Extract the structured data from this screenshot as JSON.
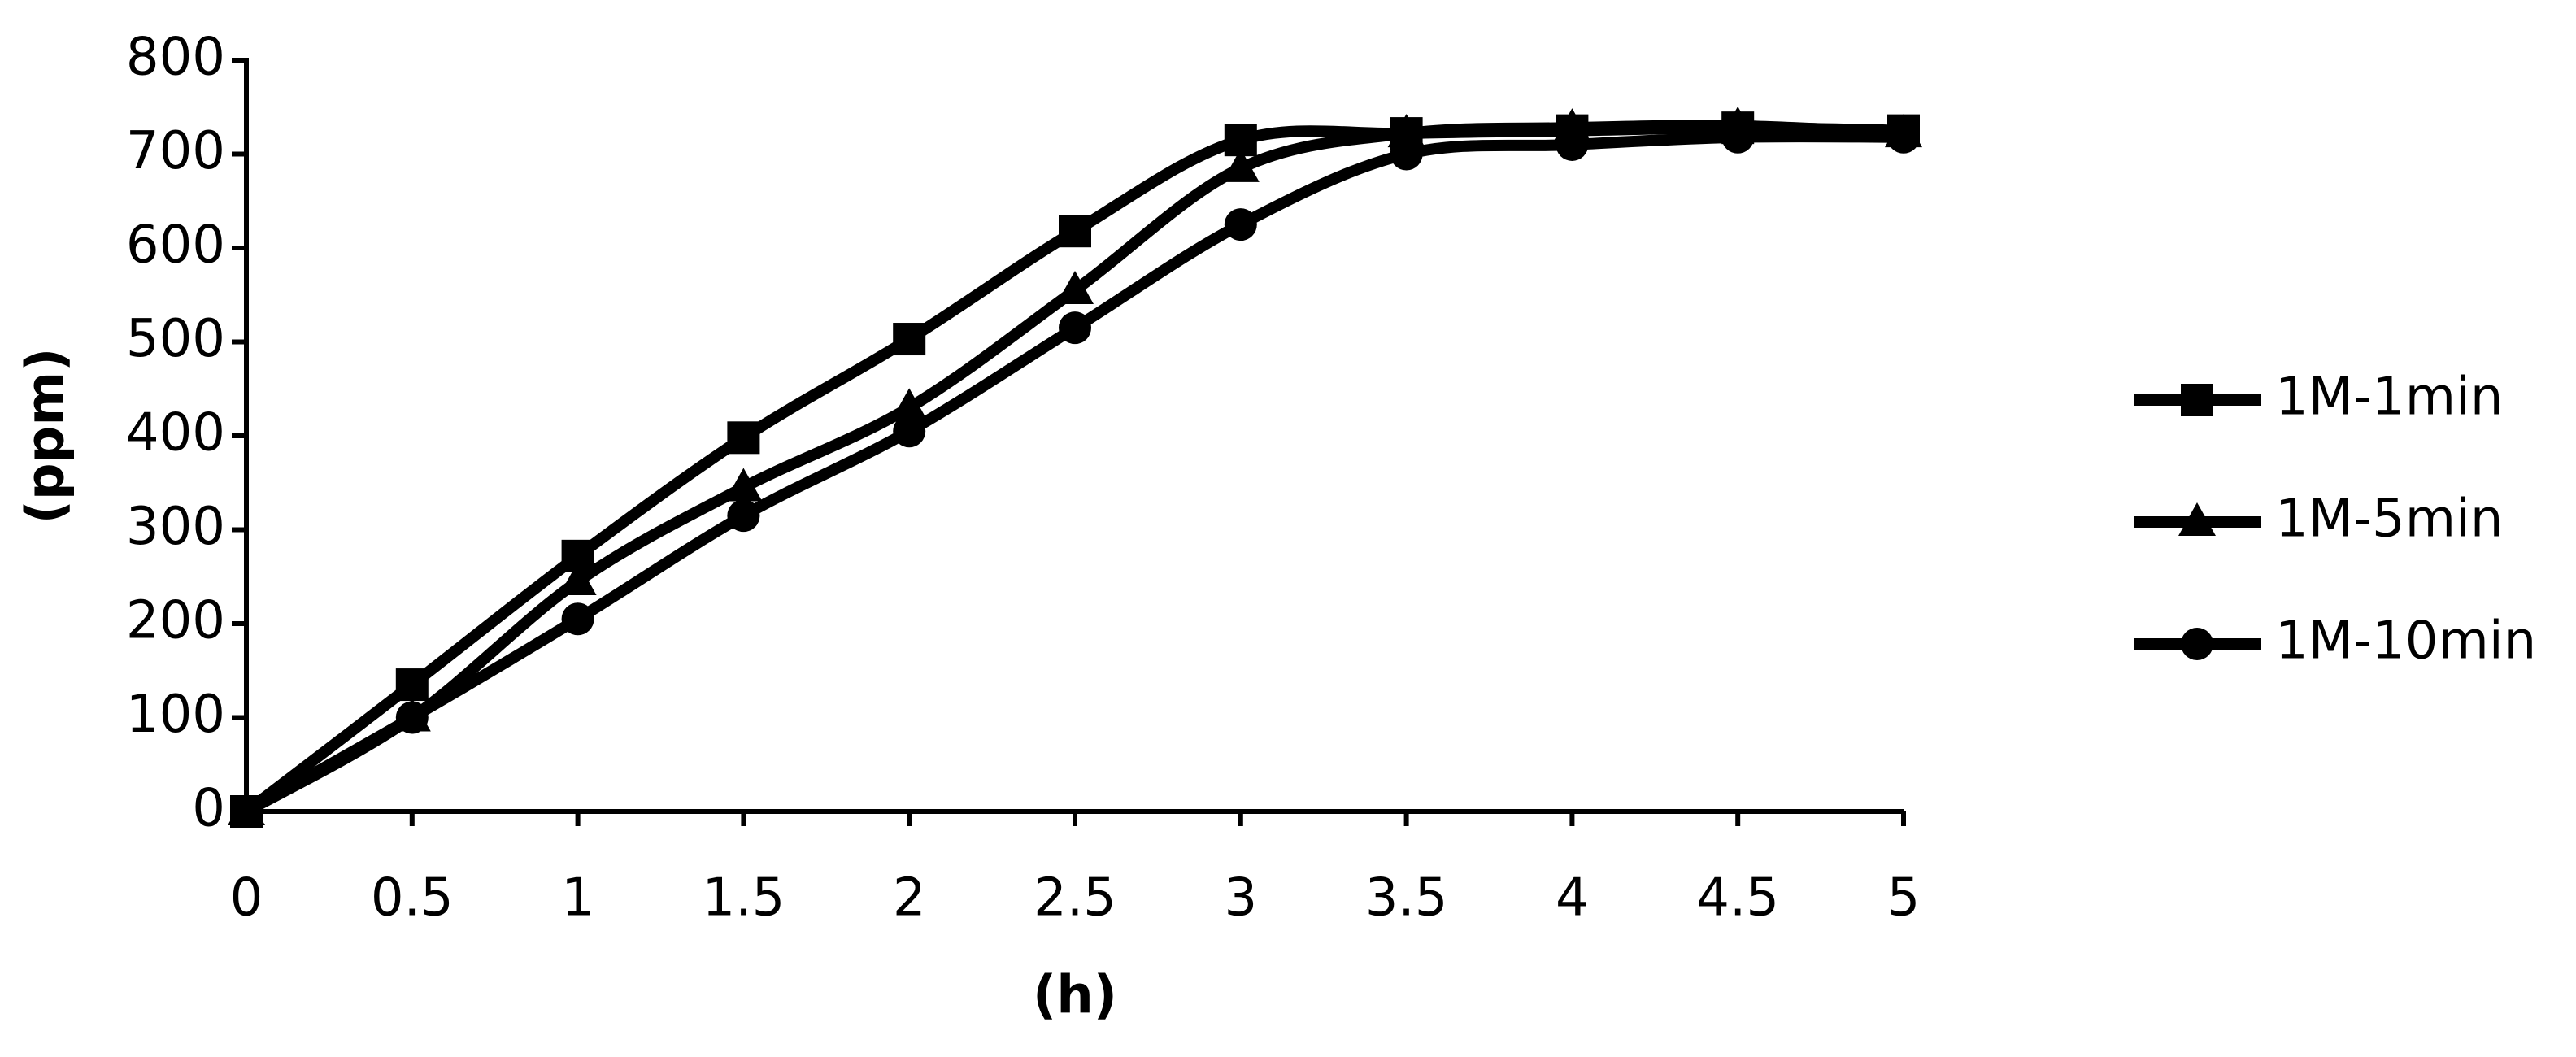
{
  "chart_data": {
    "type": "line",
    "x_label": "(h)",
    "y_label": "(ppm)",
    "x": [
      0,
      0.5,
      1,
      1.5,
      2,
      2.5,
      3,
      3.5,
      4,
      4.5,
      5
    ],
    "series": [
      {
        "name": "1M-1min",
        "color": "#000000",
        "marker": "square",
        "values": [
          0,
          135,
          272,
          398,
          503,
          618,
          715,
          722,
          725,
          728,
          725
        ]
      },
      {
        "name": "1M-5min",
        "color": "#000000",
        "marker": "triangle",
        "values": [
          0,
          100,
          245,
          345,
          430,
          555,
          685,
          722,
          728,
          730,
          722
        ]
      },
      {
        "name": "1M-10min",
        "color": "#000000",
        "marker": "circle",
        "values": [
          0,
          100,
          205,
          315,
          405,
          515,
          625,
          700,
          710,
          718,
          718
        ]
      }
    ],
    "xlim": [
      0,
      5
    ],
    "xticks": [
      0,
      0.5,
      1,
      1.5,
      2,
      2.5,
      3,
      3.5,
      4,
      4.5,
      5
    ],
    "ylim": [
      0,
      800
    ],
    "yticks": [
      0,
      100,
      200,
      300,
      400,
      500,
      600,
      700,
      800
    ],
    "smooth": true,
    "grid": false,
    "legend": "right"
  }
}
